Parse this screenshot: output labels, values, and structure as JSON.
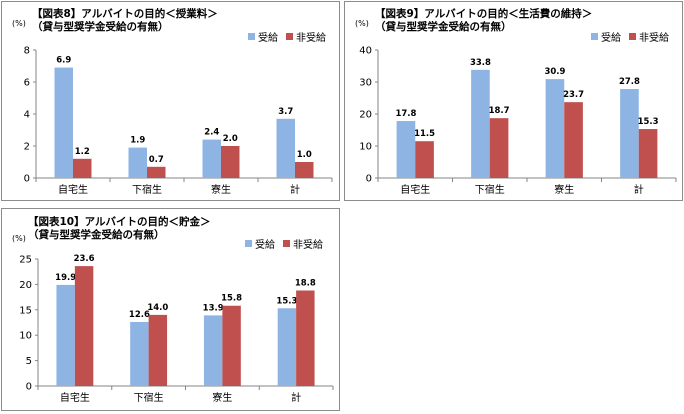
{
  "colors": {
    "recipient": "#8EB4E3",
    "non_recipient": "#C0504D",
    "axis": "#868686",
    "grid": "#d9d9d9"
  },
  "legend": {
    "recipient": "受給",
    "non_recipient": "非受給"
  },
  "chart_data": [
    {
      "type": "bar",
      "title": "【図表8】アルバイトの目的＜授業料＞",
      "subtitle": "（貸与型奨学金受給の有無）",
      "unit": "(%)",
      "categories": [
        "自宅生",
        "下宿生",
        "寮生",
        "計"
      ],
      "series": [
        {
          "name": "受給",
          "values": [
            6.9,
            1.9,
            2.4,
            3.7
          ]
        },
        {
          "name": "非受給",
          "values": [
            1.2,
            0.7,
            2.0,
            1.0
          ]
        }
      ],
      "ylim": [
        0,
        8
      ],
      "yticks": [
        0,
        2,
        4,
        6,
        8
      ],
      "legend_position": "top-right",
      "grid": false
    },
    {
      "type": "bar",
      "title": "【図表9】アルバイトの目的＜生活費の維持＞",
      "subtitle": "（貸与型奨学金受給の有無）",
      "unit": "(%)",
      "categories": [
        "自宅生",
        "下宿生",
        "寮生",
        "計"
      ],
      "series": [
        {
          "name": "受給",
          "values": [
            17.8,
            33.8,
            30.9,
            27.8
          ]
        },
        {
          "name": "非受給",
          "values": [
            11.5,
            18.7,
            23.7,
            15.3
          ]
        }
      ],
      "ylim": [
        0,
        40
      ],
      "yticks": [
        0,
        10,
        20,
        30,
        40
      ],
      "legend_position": "top-right",
      "grid": false
    },
    {
      "type": "bar",
      "title": "【図表10】アルバイトの目的＜貯金＞",
      "subtitle": "（貸与型奨学金受給の有無）",
      "unit": "(%)",
      "categories": [
        "自宅生",
        "下宿生",
        "寮生",
        "計"
      ],
      "series": [
        {
          "name": "受給",
          "values": [
            19.9,
            12.6,
            13.9,
            15.3
          ]
        },
        {
          "name": "非受給",
          "values": [
            23.6,
            14.0,
            15.8,
            18.8
          ]
        }
      ],
      "ylim": [
        0,
        25
      ],
      "yticks": [
        0,
        5,
        10,
        15,
        20,
        25
      ],
      "legend_position": "top-right",
      "grid": false
    }
  ]
}
